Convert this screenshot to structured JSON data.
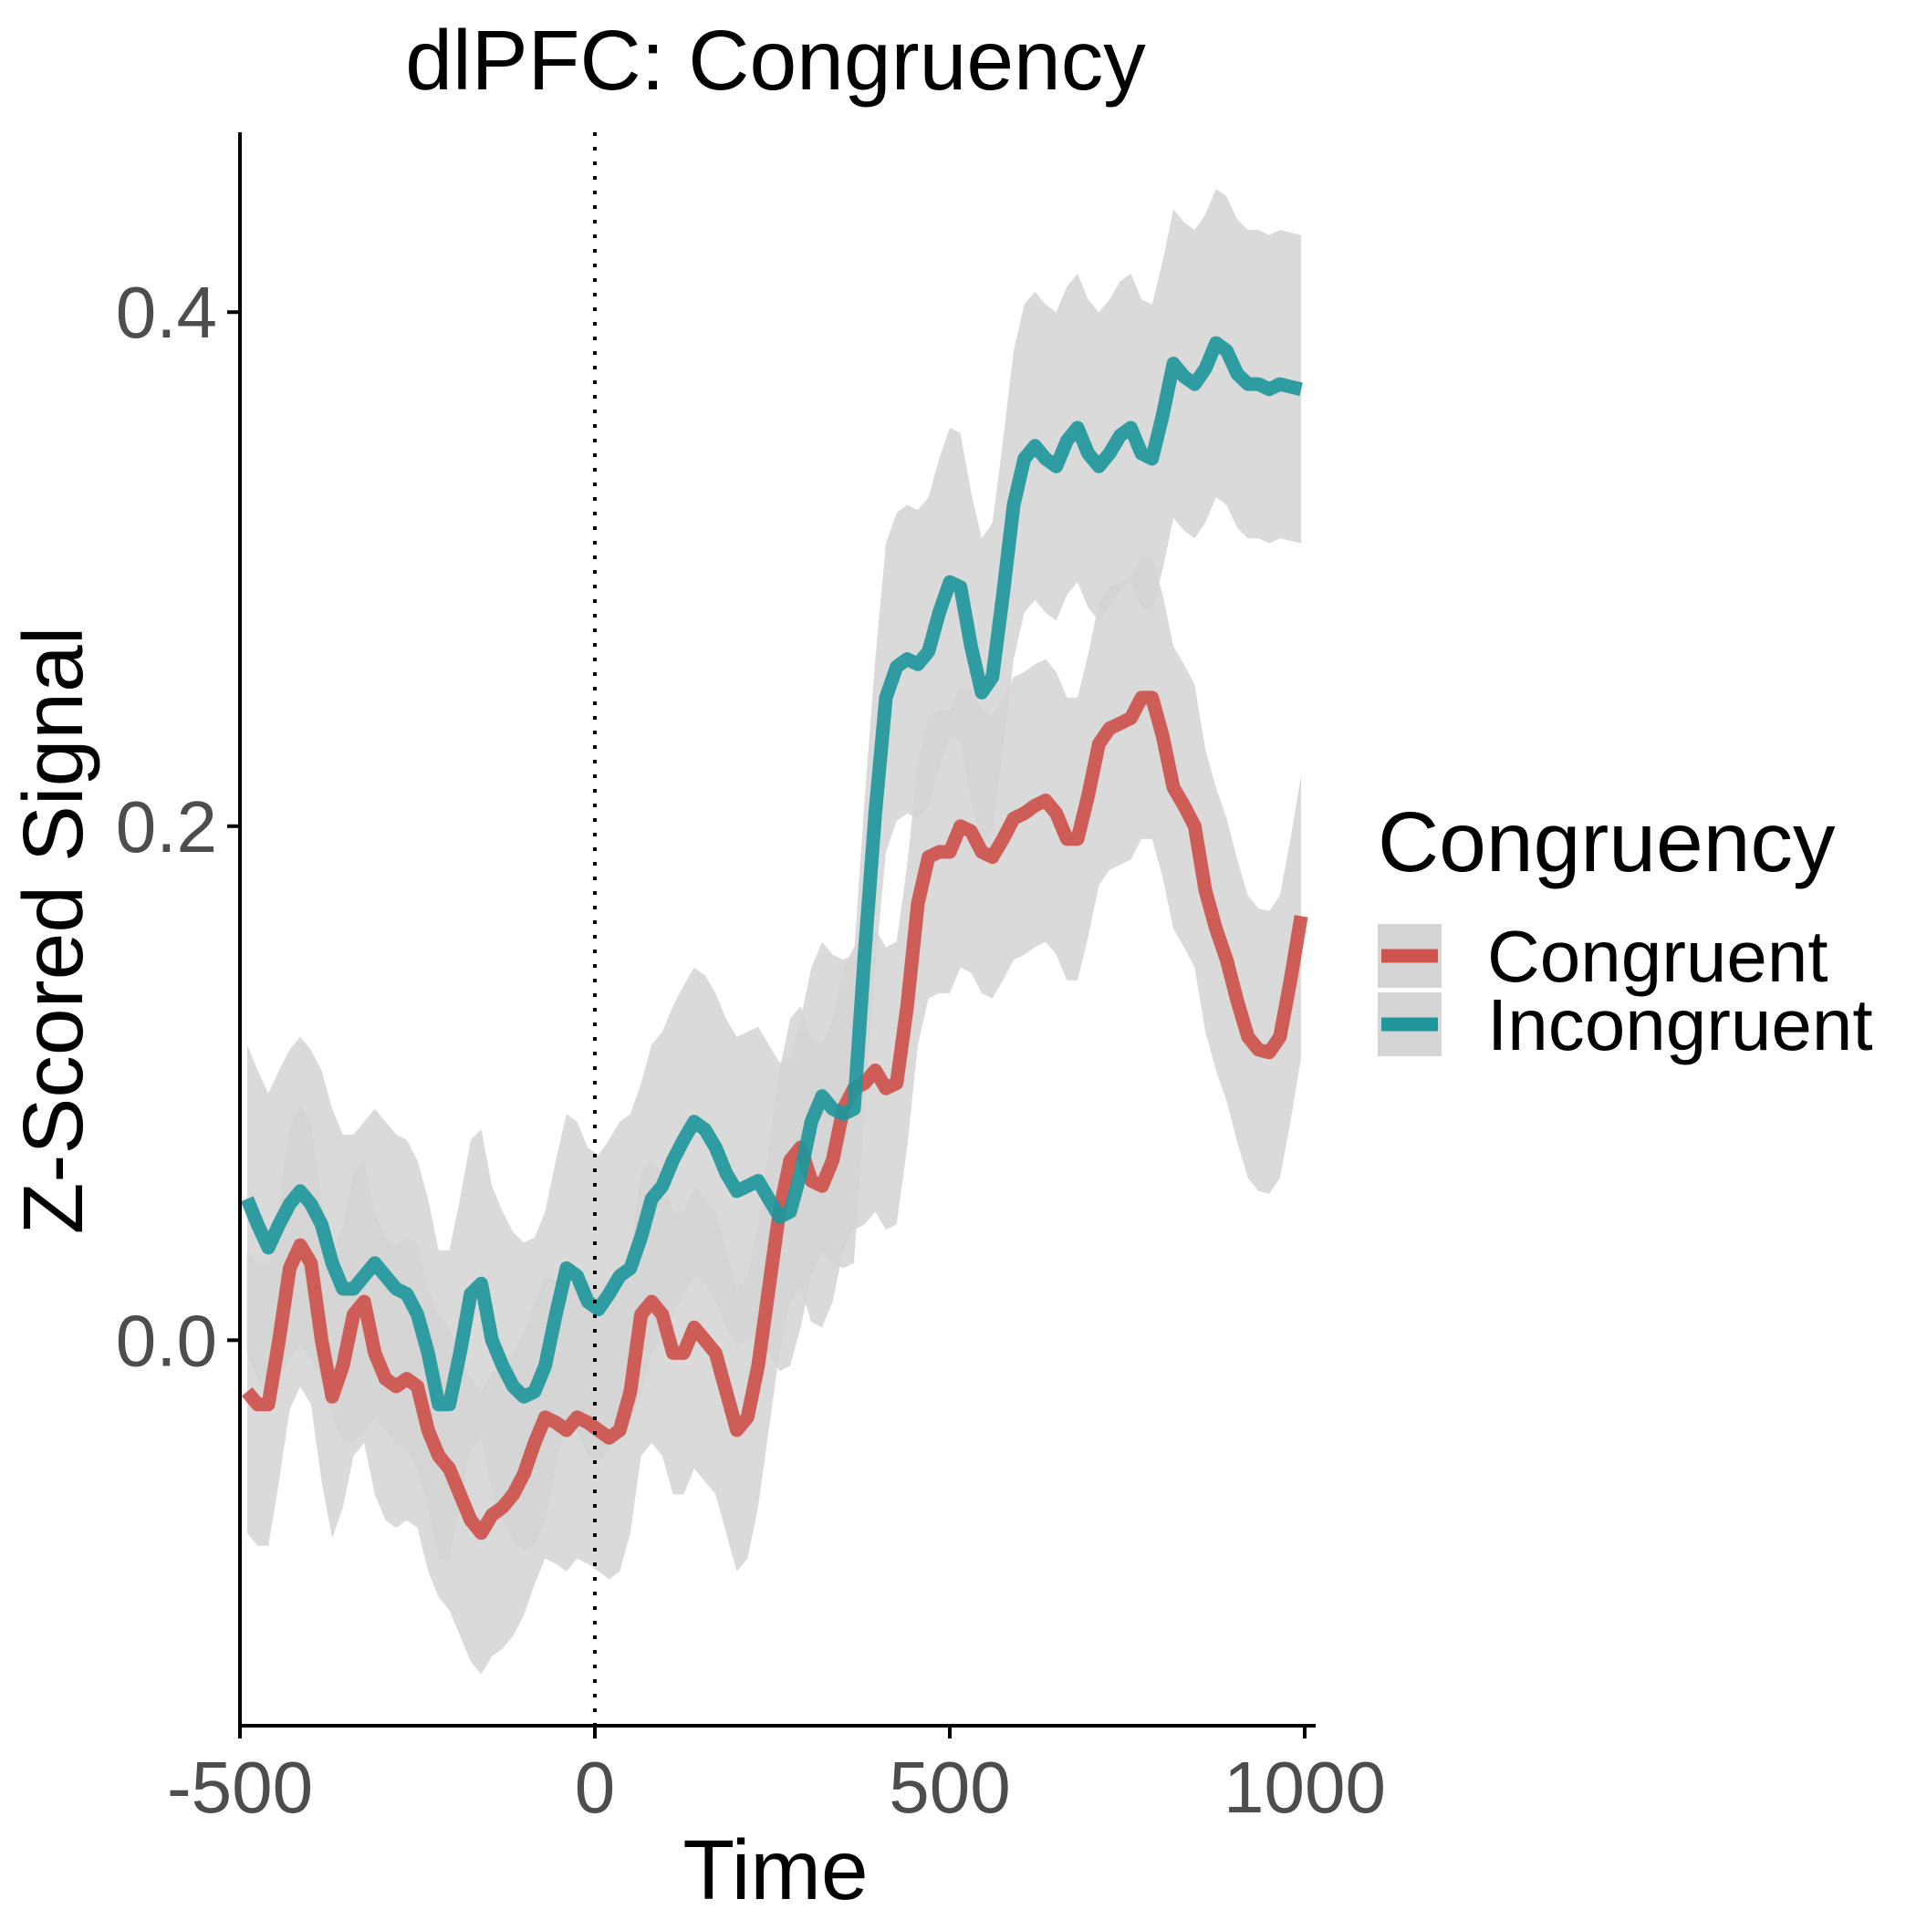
{
  "chart_data": {
    "type": "line",
    "title": "dlPFC: Congruency",
    "xlabel": "Time",
    "ylabel": "Z-Scored Signal",
    "xlim": [
      -500,
      1000
    ],
    "ylim": [
      -0.15,
      0.47
    ],
    "xticks": [
      -500,
      0,
      500,
      1000
    ],
    "xtick_labels": [
      "-500",
      "0",
      "500",
      "1000"
    ],
    "yticks": [
      0.0,
      0.2,
      0.4
    ],
    "ytick_labels": [
      "0.0",
      "0.2",
      "0.4"
    ],
    "reference_line": {
      "x": 0,
      "style": "dotted"
    },
    "grid": false,
    "ribbon_color": "#d4d4d4",
    "legend": {
      "title": "Congruency",
      "position": "right",
      "entries": [
        "Congruent",
        "Incongruent"
      ]
    },
    "series": [
      {
        "name": "Congruent",
        "color": "#cd534c",
        "ribbon_half_width": 0.055,
        "points": [
          [
            -490,
            -0.02
          ],
          [
            -475,
            -0.025
          ],
          [
            -460,
            -0.025
          ],
          [
            -445,
            0.0
          ],
          [
            -430,
            0.028
          ],
          [
            -415,
            0.037
          ],
          [
            -400,
            0.03
          ],
          [
            -385,
            0.0
          ],
          [
            -370,
            -0.022
          ],
          [
            -355,
            -0.01
          ],
          [
            -340,
            0.01
          ],
          [
            -325,
            0.015
          ],
          [
            -310,
            -0.005
          ],
          [
            -295,
            -0.015
          ],
          [
            -280,
            -0.018
          ],
          [
            -265,
            -0.015
          ],
          [
            -250,
            -0.018
          ],
          [
            -235,
            -0.035
          ],
          [
            -220,
            -0.045
          ],
          [
            -205,
            -0.05
          ],
          [
            -190,
            -0.06
          ],
          [
            -175,
            -0.07
          ],
          [
            -160,
            -0.075
          ],
          [
            -145,
            -0.068
          ],
          [
            -130,
            -0.065
          ],
          [
            -115,
            -0.06
          ],
          [
            -100,
            -0.052
          ],
          [
            -85,
            -0.04
          ],
          [
            -70,
            -0.03
          ],
          [
            -55,
            -0.032
          ],
          [
            -40,
            -0.035
          ],
          [
            -25,
            -0.03
          ],
          [
            -10,
            -0.032
          ],
          [
            5,
            -0.035
          ],
          [
            20,
            -0.038
          ],
          [
            35,
            -0.035
          ],
          [
            50,
            -0.02
          ],
          [
            65,
            0.01
          ],
          [
            80,
            0.015
          ],
          [
            95,
            0.01
          ],
          [
            110,
            -0.005
          ],
          [
            125,
            -0.005
          ],
          [
            140,
            0.005
          ],
          [
            155,
            0.0
          ],
          [
            170,
            -0.005
          ],
          [
            185,
            -0.02
          ],
          [
            200,
            -0.035
          ],
          [
            215,
            -0.03
          ],
          [
            230,
            -0.01
          ],
          [
            245,
            0.02
          ],
          [
            260,
            0.05
          ],
          [
            275,
            0.07
          ],
          [
            290,
            0.075
          ],
          [
            305,
            0.062
          ],
          [
            320,
            0.06
          ],
          [
            335,
            0.07
          ],
          [
            350,
            0.09
          ],
          [
            365,
            0.098
          ],
          [
            380,
            0.1
          ],
          [
            395,
            0.105
          ],
          [
            410,
            0.098
          ],
          [
            425,
            0.1
          ],
          [
            440,
            0.13
          ],
          [
            455,
            0.17
          ],
          [
            470,
            0.188
          ],
          [
            485,
            0.19
          ],
          [
            500,
            0.19
          ],
          [
            515,
            0.2
          ],
          [
            530,
            0.198
          ],
          [
            545,
            0.19
          ],
          [
            560,
            0.188
          ],
          [
            575,
            0.195
          ],
          [
            590,
            0.203
          ],
          [
            605,
            0.205
          ],
          [
            620,
            0.208
          ],
          [
            635,
            0.21
          ],
          [
            650,
            0.205
          ],
          [
            665,
            0.195
          ],
          [
            680,
            0.195
          ],
          [
            695,
            0.212
          ],
          [
            710,
            0.232
          ],
          [
            725,
            0.238
          ],
          [
            740,
            0.24
          ],
          [
            755,
            0.242
          ],
          [
            770,
            0.25
          ],
          [
            785,
            0.25
          ],
          [
            800,
            0.235
          ],
          [
            815,
            0.215
          ],
          [
            830,
            0.208
          ],
          [
            845,
            0.2
          ],
          [
            860,
            0.175
          ],
          [
            875,
            0.16
          ],
          [
            890,
            0.148
          ],
          [
            905,
            0.132
          ],
          [
            920,
            0.118
          ],
          [
            935,
            0.113
          ],
          [
            950,
            0.112
          ],
          [
            965,
            0.118
          ],
          [
            980,
            0.14
          ],
          [
            995,
            0.165
          ]
        ]
      },
      {
        "name": "Incongruent",
        "color": "#1f979b",
        "ribbon_half_width": 0.06,
        "points": [
          [
            -490,
            0.055
          ],
          [
            -475,
            0.045
          ],
          [
            -460,
            0.036
          ],
          [
            -445,
            0.045
          ],
          [
            -430,
            0.053
          ],
          [
            -415,
            0.058
          ],
          [
            -400,
            0.053
          ],
          [
            -385,
            0.045
          ],
          [
            -370,
            0.03
          ],
          [
            -355,
            0.02
          ],
          [
            -340,
            0.02
          ],
          [
            -325,
            0.025
          ],
          [
            -310,
            0.03
          ],
          [
            -295,
            0.025
          ],
          [
            -280,
            0.02
          ],
          [
            -265,
            0.018
          ],
          [
            -250,
            0.01
          ],
          [
            -235,
            -0.005
          ],
          [
            -220,
            -0.025
          ],
          [
            -205,
            -0.025
          ],
          [
            -190,
            -0.005
          ],
          [
            -175,
            0.018
          ],
          [
            -160,
            0.022
          ],
          [
            -145,
            0.0
          ],
          [
            -130,
            -0.01
          ],
          [
            -115,
            -0.018
          ],
          [
            -100,
            -0.022
          ],
          [
            -85,
            -0.02
          ],
          [
            -70,
            -0.01
          ],
          [
            -55,
            0.01
          ],
          [
            -40,
            0.028
          ],
          [
            -25,
            0.025
          ],
          [
            -10,
            0.015
          ],
          [
            5,
            0.012
          ],
          [
            20,
            0.018
          ],
          [
            35,
            0.025
          ],
          [
            50,
            0.028
          ],
          [
            65,
            0.04
          ],
          [
            80,
            0.055
          ],
          [
            95,
            0.06
          ],
          [
            110,
            0.07
          ],
          [
            125,
            0.078
          ],
          [
            140,
            0.085
          ],
          [
            155,
            0.082
          ],
          [
            170,
            0.075
          ],
          [
            185,
            0.065
          ],
          [
            200,
            0.058
          ],
          [
            215,
            0.06
          ],
          [
            230,
            0.062
          ],
          [
            245,
            0.055
          ],
          [
            260,
            0.048
          ],
          [
            275,
            0.05
          ],
          [
            290,
            0.065
          ],
          [
            305,
            0.085
          ],
          [
            320,
            0.095
          ],
          [
            335,
            0.09
          ],
          [
            350,
            0.088
          ],
          [
            365,
            0.09
          ],
          [
            380,
            0.15
          ],
          [
            395,
            0.205
          ],
          [
            410,
            0.25
          ],
          [
            425,
            0.262
          ],
          [
            440,
            0.265
          ],
          [
            455,
            0.263
          ],
          [
            470,
            0.268
          ],
          [
            485,
            0.283
          ],
          [
            500,
            0.295
          ],
          [
            515,
            0.293
          ],
          [
            530,
            0.27
          ],
          [
            545,
            0.252
          ],
          [
            560,
            0.258
          ],
          [
            575,
            0.29
          ],
          [
            590,
            0.325
          ],
          [
            605,
            0.343
          ],
          [
            620,
            0.348
          ],
          [
            635,
            0.343
          ],
          [
            650,
            0.34
          ],
          [
            665,
            0.35
          ],
          [
            680,
            0.355
          ],
          [
            695,
            0.345
          ],
          [
            710,
            0.34
          ],
          [
            725,
            0.345
          ],
          [
            740,
            0.352
          ],
          [
            755,
            0.355
          ],
          [
            770,
            0.345
          ],
          [
            785,
            0.343
          ],
          [
            800,
            0.36
          ],
          [
            815,
            0.38
          ],
          [
            830,
            0.375
          ],
          [
            845,
            0.372
          ],
          [
            860,
            0.378
          ],
          [
            875,
            0.388
          ],
          [
            890,
            0.385
          ],
          [
            905,
            0.376
          ],
          [
            920,
            0.372
          ],
          [
            935,
            0.372
          ],
          [
            950,
            0.37
          ],
          [
            965,
            0.372
          ],
          [
            980,
            0.371
          ],
          [
            995,
            0.37
          ]
        ]
      }
    ]
  }
}
